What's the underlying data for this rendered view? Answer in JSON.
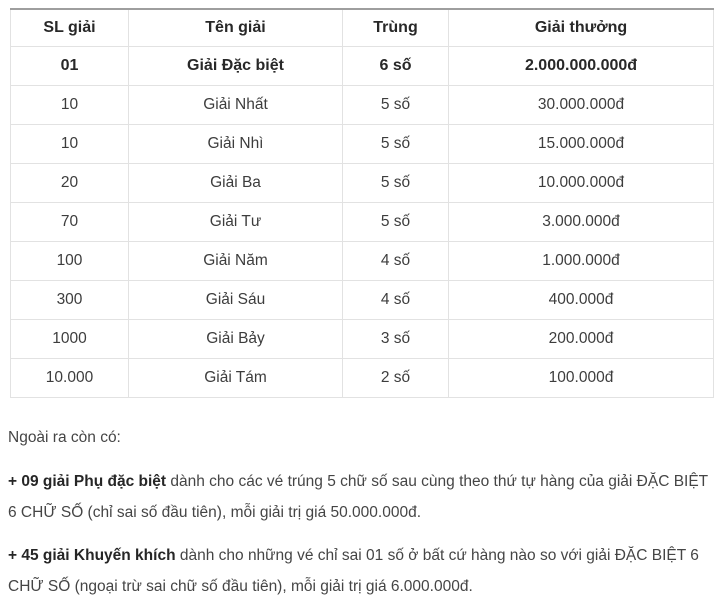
{
  "table": {
    "headers": [
      "SL giải",
      "Tên giải",
      "Trùng",
      "Giải thưởng"
    ],
    "rows": [
      {
        "sl": "01",
        "name": "Giải Đặc biệt",
        "match": "6 số",
        "prize": "2.000.000.000đ"
      },
      {
        "sl": "10",
        "name": "Giải Nhất",
        "match": "5 số",
        "prize": "30.000.000đ"
      },
      {
        "sl": "10",
        "name": "Giải Nhì",
        "match": "5 số",
        "prize": "15.000.000đ"
      },
      {
        "sl": "20",
        "name": "Giải Ba",
        "match": "5 số",
        "prize": "10.000.000đ"
      },
      {
        "sl": "70",
        "name": "Giải Tư",
        "match": "5 số",
        "prize": "3.000.000đ"
      },
      {
        "sl": "100",
        "name": "Giải Năm",
        "match": "4 số",
        "prize": "1.000.000đ"
      },
      {
        "sl": "300",
        "name": "Giải Sáu",
        "match": "4 số",
        "prize": "400.000đ"
      },
      {
        "sl": "1000",
        "name": "Giải Bảy",
        "match": "3 số",
        "prize": "200.000đ"
      },
      {
        "sl": "10.000",
        "name": "Giải Tám",
        "match": "2 số",
        "prize": "100.000đ"
      }
    ]
  },
  "notes_intro": "Ngoài ra còn có:",
  "notes": [
    {
      "bold": "+ 09 giải Phụ đặc biệt",
      "text": " dành cho các vé trúng 5 chữ số sau cùng theo thứ tự hàng của giải ĐẶC BIỆT 6 CHỮ SỐ (chỉ sai số đầu tiên), mỗi giải trị giá 50.000.000đ."
    },
    {
      "bold": "+ 45 giải Khuyến khích",
      "text": " dành cho những vé chỉ sai 01 số ở bất cứ hàng nào so với giải ĐẶC BIỆT 6 CHỮ SỐ (ngoại trừ sai chữ số đầu tiên), mỗi giải trị giá 6.000.000đ."
    }
  ],
  "colors": {
    "table_top_border": "#9e9e9e",
    "table_grid_border": "#e2e2e2",
    "text": "#3a3a3a"
  }
}
